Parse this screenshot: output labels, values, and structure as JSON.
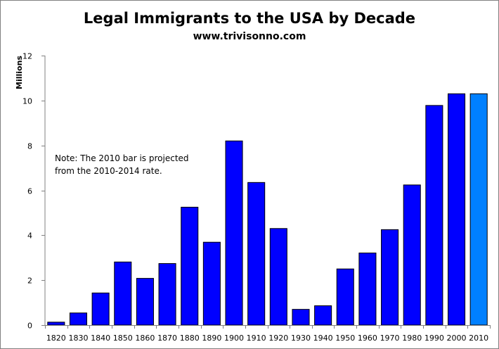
{
  "chart_data": {
    "type": "bar",
    "title": "Legal Immigrants to the USA by Decade",
    "subtitle": "www.trivisonno.com",
    "xlabel": "",
    "ylabel": "Millions",
    "ylim": [
      0,
      12
    ],
    "yticks": [
      0,
      2,
      4,
      6,
      8,
      10,
      12
    ],
    "grid": false,
    "legend": "none",
    "categories": [
      "1820",
      "1830",
      "1840",
      "1850",
      "1860",
      "1870",
      "1880",
      "1890",
      "1900",
      "1910",
      "1920",
      "1930",
      "1940",
      "1950",
      "1960",
      "1970",
      "1980",
      "1990",
      "2000",
      "2010"
    ],
    "values": [
      0.13,
      0.54,
      1.43,
      2.81,
      2.08,
      2.74,
      5.25,
      3.69,
      8.2,
      6.35,
      4.3,
      0.7,
      0.86,
      2.5,
      3.21,
      4.25,
      6.24,
      9.78,
      10.3,
      10.3
    ],
    "colors": {
      "bar": "#0000ff",
      "projected_bar": "#0080ff",
      "axis": "#808080",
      "border": "#000000"
    },
    "projected_category": "2010",
    "annotation": {
      "line1": "Note: The 2010  bar is projected",
      "line2": "from the 2010-2014  rate."
    }
  }
}
